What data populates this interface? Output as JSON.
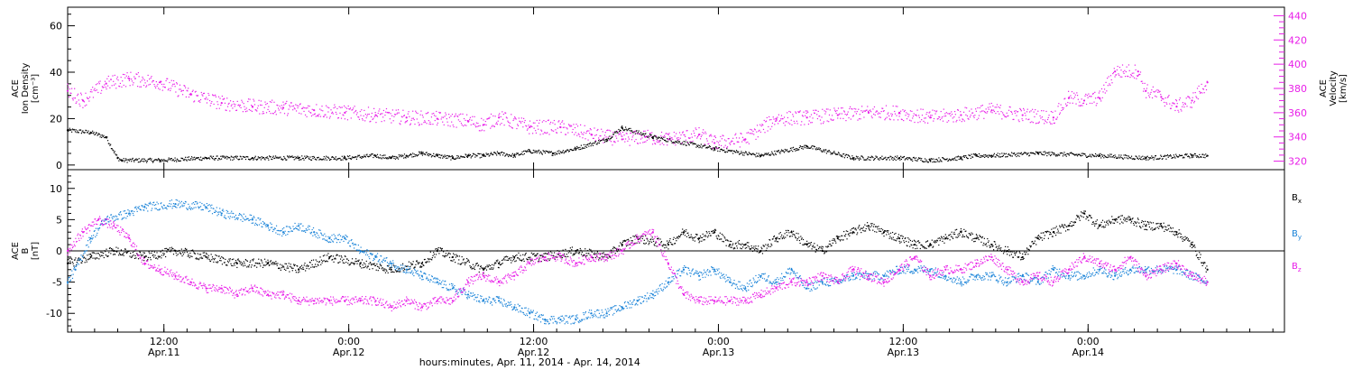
{
  "colors": {
    "black": "#000000",
    "magenta": "#e81ee8",
    "blue": "#1a83d8"
  },
  "chart_data": [
    {
      "type": "scatter",
      "panel": "top",
      "ylabel_left": [
        "ACE",
        "Ion Density",
        "[cm⁻³]"
      ],
      "ylabel_right": [
        "ACE",
        "Velocity",
        "[km/s]"
      ],
      "ylim_left": [
        -2,
        68
      ],
      "yticks_left": [
        0,
        20,
        40,
        60
      ],
      "ylim_right": [
        313,
        447
      ],
      "yticks_right": [
        320,
        340,
        360,
        380,
        400,
        420,
        440
      ],
      "series": [
        {
          "axis": "left",
          "color": "black",
          "x": [
            0,
            3,
            5,
            6.5,
            7,
            12,
            18,
            24,
            30,
            36,
            40,
            42,
            44,
            46,
            48,
            50,
            52,
            54,
            56,
            58,
            60,
            63,
            66,
            70,
            72,
            76,
            84,
            90,
            96,
            102,
            108,
            112,
            116,
            118,
            120,
            126,
            134,
            140,
            146,
            148
          ],
          "y": [
            15,
            14,
            12,
            3,
            2,
            2,
            3,
            3,
            3,
            3,
            4,
            3,
            4,
            5,
            4,
            3,
            4,
            4,
            5,
            4,
            6,
            5,
            7,
            11,
            16,
            12,
            7,
            4,
            8,
            3,
            3,
            2,
            3,
            4,
            4,
            5,
            4,
            3,
            4,
            4
          ]
        },
        {
          "axis": "right",
          "color": "magenta",
          "x": [
            0,
            2,
            5,
            8,
            12,
            16,
            20,
            24,
            28,
            32,
            36,
            40,
            44,
            48,
            52,
            54,
            56,
            60,
            64,
            68,
            72,
            75,
            78,
            82,
            84,
            88,
            92,
            96,
            100,
            104,
            108,
            112,
            116,
            120,
            124,
            128,
            130,
            132,
            134,
            136,
            139,
            140,
            142,
            144,
            146,
            148
          ],
          "y": [
            378,
            370,
            384,
            388,
            385,
            375,
            368,
            365,
            364,
            362,
            360,
            358,
            356,
            355,
            353,
            350,
            356,
            348,
            348,
            342,
            338,
            340,
            338,
            342,
            335,
            338,
            355,
            356,
            358,
            360,
            360,
            356,
            358,
            362,
            358,
            356,
            372,
            370,
            372,
            394,
            394,
            378,
            373,
            365,
            370,
            385
          ]
        }
      ]
    },
    {
      "type": "scatter",
      "panel": "bottom",
      "ylabel": [
        "ACE",
        "B",
        "[nT]"
      ],
      "ylim": [
        -13,
        13
      ],
      "yticks": [
        -10,
        -5,
        0,
        5,
        10
      ],
      "xlabel": "hours:minutes, Apr. 11, 2014 - Apr. 14, 2014",
      "xlim": [
        0,
        158
      ],
      "xticks": [
        {
          "x": 12.5,
          "t1": "12:00",
          "t2": "Apr.11"
        },
        {
          "x": 36.5,
          "t1": "0:00",
          "t2": "Apr.12"
        },
        {
          "x": 60.5,
          "t1": "12:00",
          "t2": "Apr.12"
        },
        {
          "x": 84.5,
          "t1": "0:00",
          "t2": "Apr.13"
        },
        {
          "x": 108.5,
          "t1": "12:00",
          "t2": "Apr.13"
        },
        {
          "x": 132.5,
          "t1": "0:00",
          "t2": "Apr.14"
        }
      ],
      "series": [
        {
          "name": "Bx",
          "color": "black",
          "x": [
            0,
            3,
            6,
            10,
            14,
            18,
            22,
            26,
            30,
            34,
            38,
            42,
            46,
            48,
            50,
            54,
            56,
            58,
            62,
            66,
            70,
            72,
            74,
            78,
            80,
            82,
            84,
            86,
            88,
            90,
            92,
            94,
            96,
            98,
            100,
            102,
            104,
            106,
            108,
            110,
            112,
            114,
            116,
            118,
            120,
            122,
            124,
            126,
            128,
            130,
            132,
            134,
            136,
            138,
            140,
            142,
            144,
            146,
            148
          ],
          "y": [
            -2,
            -1,
            0,
            -1,
            0,
            -1,
            -2,
            -2,
            -3,
            -1,
            -2,
            -3,
            -2,
            0,
            -1,
            -3,
            -2,
            -1,
            -1,
            0,
            -1,
            1,
            2,
            1,
            3,
            2,
            3,
            1,
            1,
            0,
            2,
            3,
            1,
            0,
            2,
            3,
            4,
            3,
            2,
            1,
            1,
            2,
            3,
            2,
            1,
            0,
            -1,
            2,
            3,
            4,
            6,
            4,
            5,
            5,
            4,
            4,
            3,
            1,
            -3
          ]
        },
        {
          "name": "By",
          "color": "blue",
          "x": [
            0,
            1,
            3,
            5,
            8,
            10,
            14,
            18,
            20,
            24,
            26,
            28,
            30,
            32,
            34,
            36,
            38,
            40,
            42,
            44,
            46,
            48,
            50,
            52,
            54,
            56,
            58,
            60,
            62,
            64,
            66,
            68,
            70,
            72,
            74,
            76,
            78,
            80,
            82,
            84,
            86,
            88,
            90,
            92,
            94,
            96,
            98,
            100,
            102,
            104,
            106,
            108,
            110,
            112,
            114,
            116,
            118,
            120,
            122,
            124,
            126,
            128,
            130,
            132,
            134,
            136,
            138,
            140,
            142,
            144,
            146,
            148
          ],
          "y": [
            -5,
            -3,
            2,
            5,
            6,
            7,
            7.5,
            7,
            6,
            5,
            4,
            3,
            4,
            3,
            2,
            2,
            0,
            -1,
            -2,
            -3,
            -4,
            -5,
            -6,
            -7,
            -8,
            -8,
            -9,
            -10,
            -11,
            -11,
            -11,
            -10,
            -10,
            -9,
            -8,
            -7,
            -5,
            -3,
            -4,
            -3,
            -5,
            -6,
            -4,
            -5,
            -3,
            -6,
            -5,
            -5,
            -4,
            -4,
            -4,
            -3,
            -3,
            -3,
            -4,
            -5,
            -4,
            -4,
            -5,
            -4,
            -5,
            -3,
            -4,
            -4,
            -3,
            -4,
            -3,
            -3,
            -3,
            -3,
            -4,
            -5
          ]
        },
        {
          "name": "Bz",
          "color": "magenta",
          "x": [
            0,
            2,
            4,
            6,
            8,
            10,
            12,
            14,
            16,
            18,
            20,
            22,
            24,
            26,
            28,
            30,
            32,
            34,
            36,
            38,
            40,
            42,
            44,
            46,
            48,
            50,
            52,
            54,
            56,
            58,
            60,
            62,
            64,
            66,
            68,
            70,
            72,
            74,
            76,
            78,
            80,
            82,
            84,
            86,
            88,
            90,
            92,
            94,
            96,
            98,
            100,
            102,
            104,
            106,
            108,
            110,
            112,
            114,
            116,
            118,
            120,
            122,
            124,
            126,
            128,
            130,
            132,
            134,
            136,
            138,
            140,
            142,
            144,
            146,
            148
          ],
          "y": [
            0,
            3,
            5,
            4,
            2,
            -2,
            -3,
            -4,
            -5,
            -6,
            -6,
            -7,
            -6,
            -7,
            -7,
            -8,
            -8,
            -8,
            -8,
            -8,
            -8,
            -9,
            -8,
            -9,
            -8,
            -8,
            -5,
            -4,
            -5,
            -4,
            -2,
            -1,
            -1,
            -2,
            -1,
            -1,
            0,
            2,
            3,
            -2,
            -7,
            -8,
            -8,
            -8,
            -8,
            -7,
            -6,
            -5,
            -5,
            -4,
            -5,
            -3,
            -4,
            -5,
            -3,
            -1,
            -4,
            -3,
            -3,
            -2,
            -1,
            -3,
            -5,
            -4,
            -5,
            -3,
            -1,
            -2,
            -3,
            -1,
            -4,
            -3,
            -2,
            -4,
            -5
          ]
        }
      ],
      "legend": [
        "Bx",
        "By",
        "Bz"
      ],
      "zero_line": true
    }
  ]
}
